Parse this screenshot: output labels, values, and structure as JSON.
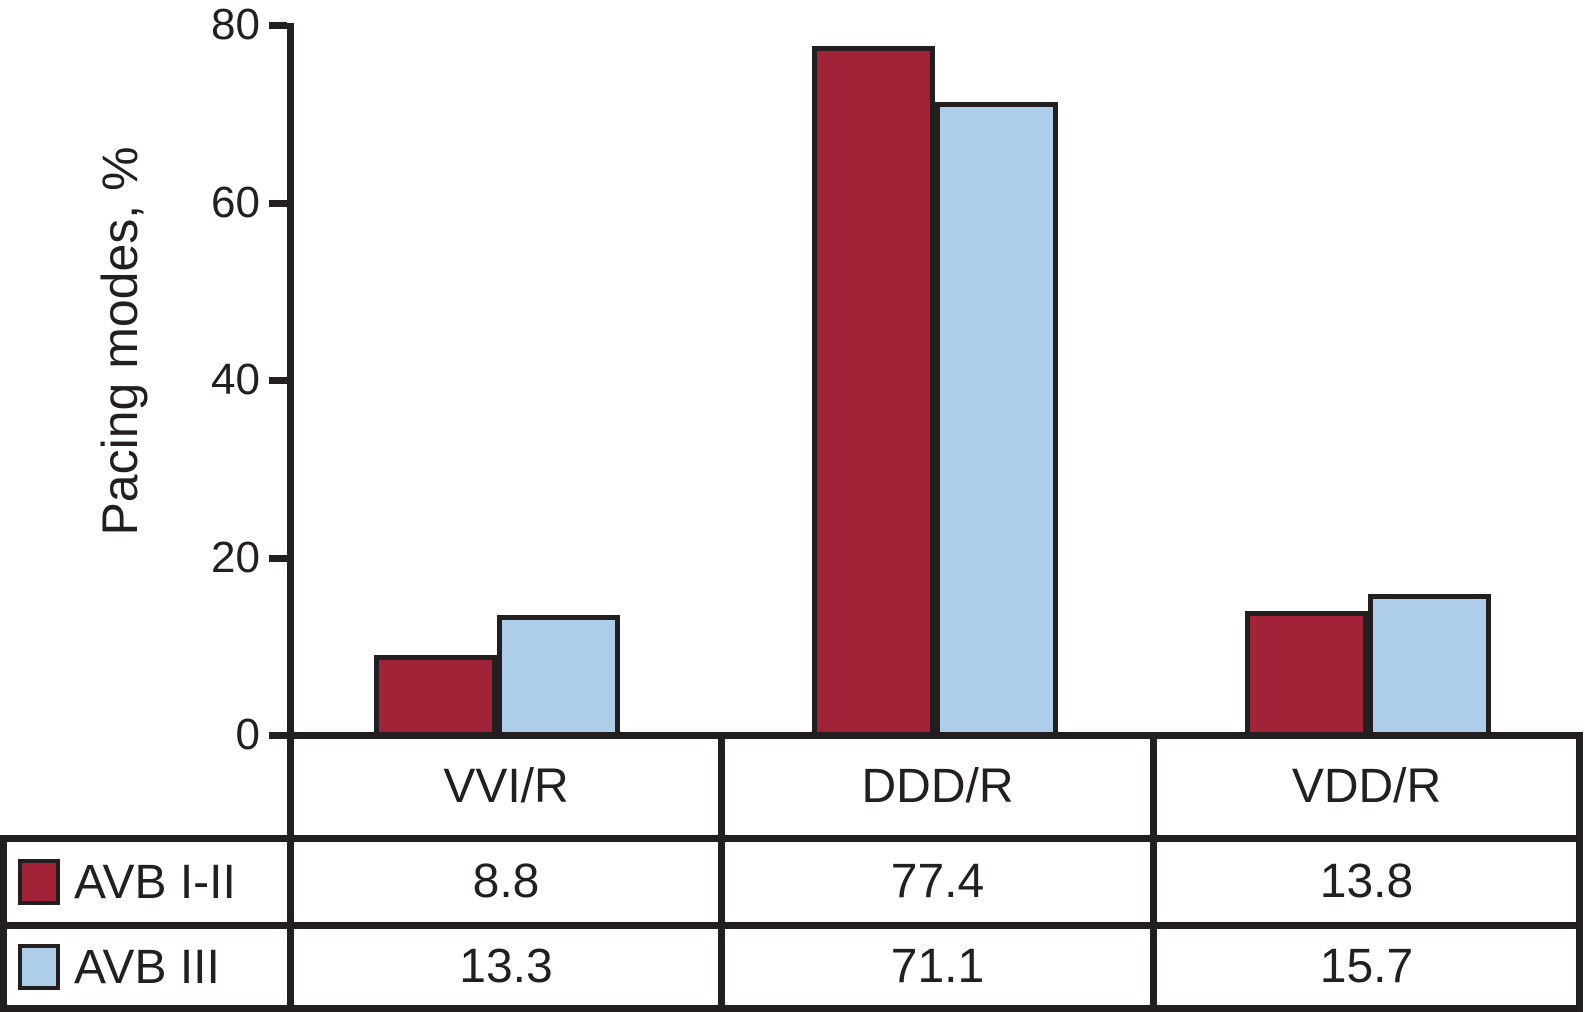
{
  "chart_data": {
    "type": "bar",
    "title": "",
    "xlabel": "",
    "ylabel": "Pacing modes, %",
    "categories": [
      "VVI/R",
      "DDD/R",
      "VDD/R"
    ],
    "series": [
      {
        "name": "AVB I-II",
        "color": "#A02338",
        "values": [
          8.8,
          77.4,
          13.8
        ]
      },
      {
        "name": "AVB III",
        "color": "#AECDE9",
        "values": [
          13.3,
          71.1,
          15.7
        ]
      }
    ],
    "yticks": [
      0,
      20,
      40,
      60,
      80
    ],
    "ylim": [
      0,
      80
    ],
    "grid": false,
    "legend_position": "table-below-chart"
  },
  "colors": {
    "ink": "#231F20",
    "series_avb_i_ii": "#A02338",
    "series_avb_iii": "#AECDE9",
    "background": "#FFFFFF"
  }
}
